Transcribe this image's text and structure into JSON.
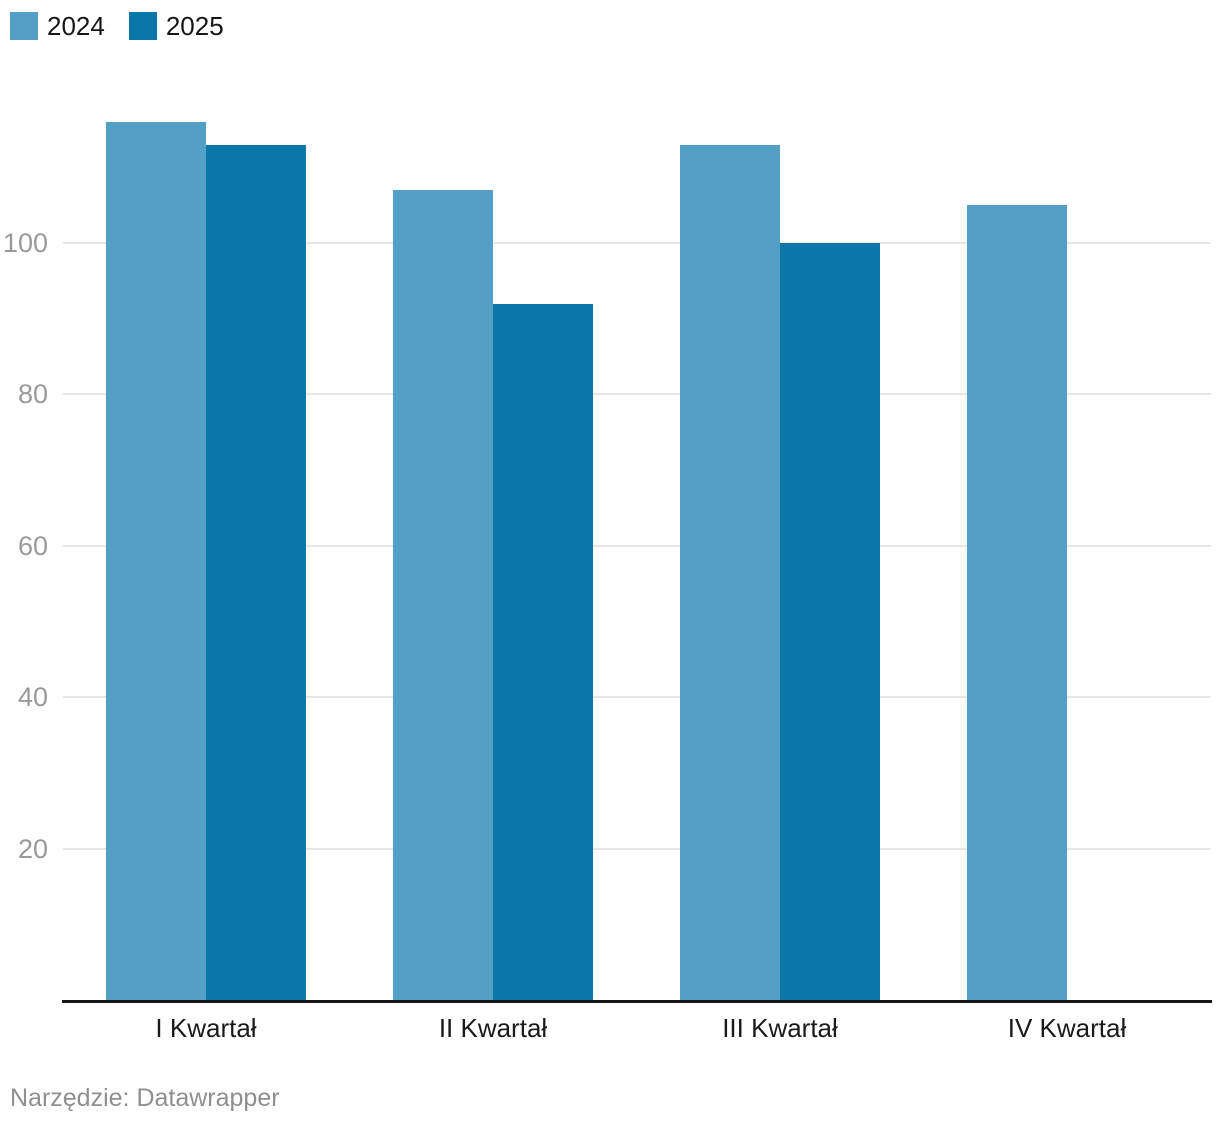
{
  "chart_data": {
    "type": "bar",
    "categories": [
      "I Kwartał",
      "II Kwartał",
      "III Kwartał",
      "IV Kwartał"
    ],
    "series": [
      {
        "name": "2024",
        "color": "#549fc6",
        "values": [
          116,
          107,
          113,
          105
        ]
      },
      {
        "name": "2025",
        "color": "#0b76a8",
        "values": [
          113,
          92,
          100,
          null
        ]
      }
    ],
    "yticks": [
      20,
      40,
      60,
      80,
      100
    ],
    "ylim": [
      0,
      120
    ],
    "grid": true,
    "legend_position": "top-left",
    "title": "",
    "xlabel": "",
    "ylabel": ""
  },
  "footer": {
    "text": "Narzędzie: Datawrapper"
  }
}
